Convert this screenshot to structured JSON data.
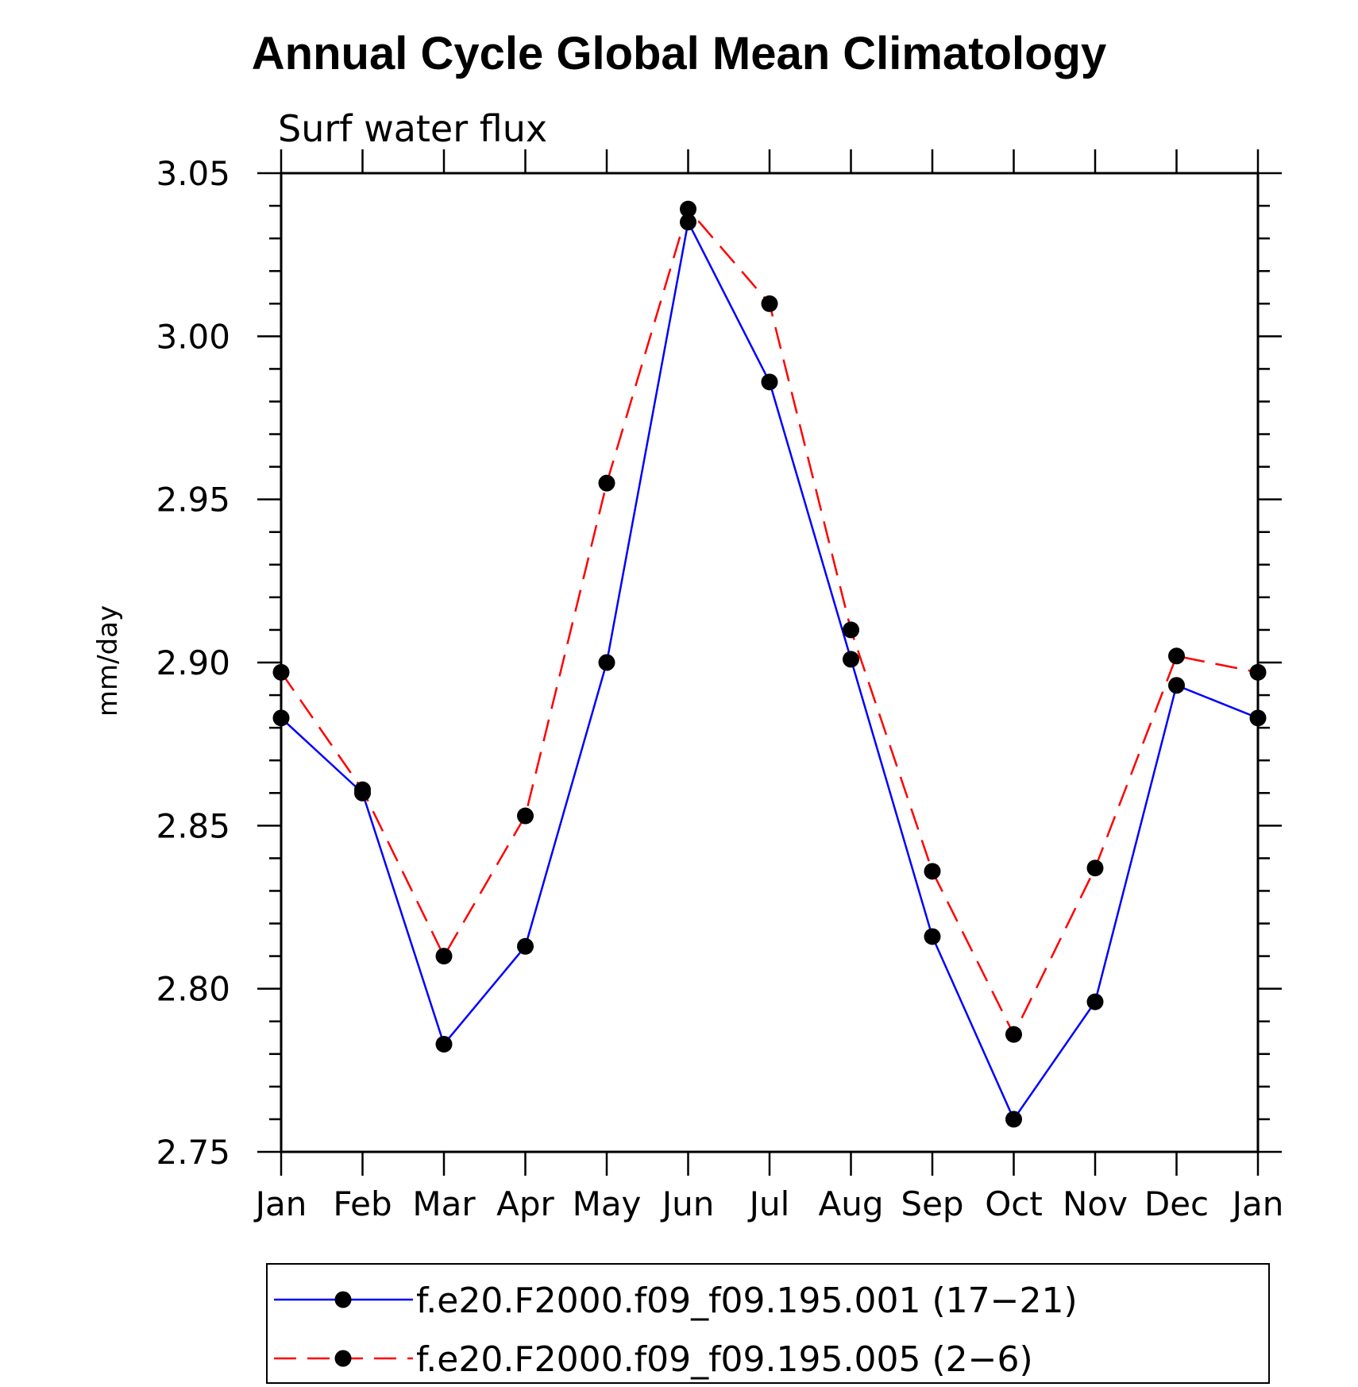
{
  "chart_data": {
    "type": "line",
    "title": "Annual Cycle Global Mean Climatology",
    "subtitle": "Surf water flux",
    "ylabel": "mm/day",
    "xlabel": "",
    "categories": [
      "Jan",
      "Feb",
      "Mar",
      "Apr",
      "May",
      "Jun",
      "Jul",
      "Aug",
      "Sep",
      "Oct",
      "Nov",
      "Dec",
      "Jan"
    ],
    "ylim": [
      2.75,
      3.05
    ],
    "yticks": [
      "2.75",
      "2.80",
      "2.85",
      "2.90",
      "2.95",
      "3.00",
      "3.05"
    ],
    "legend_position": "bottom",
    "series": [
      {
        "name": "f.e20.F2000.f09_f09.195.001 (17−21)",
        "color": "#0000ff",
        "line_style": "solid",
        "marker": "filled-circle",
        "values": [
          2.883,
          2.86,
          2.783,
          2.813,
          2.9,
          3.035,
          2.986,
          2.901,
          2.816,
          2.76,
          2.796,
          2.893,
          2.883
        ]
      },
      {
        "name": "f.e20.F2000.f09_f09.195.005 (2−6)",
        "color": "#ff0000",
        "line_style": "dashed",
        "marker": "filled-circle",
        "values": [
          2.897,
          2.861,
          2.81,
          2.853,
          2.955,
          3.039,
          3.01,
          2.91,
          2.836,
          2.786,
          2.837,
          2.902,
          2.897
        ]
      }
    ]
  }
}
